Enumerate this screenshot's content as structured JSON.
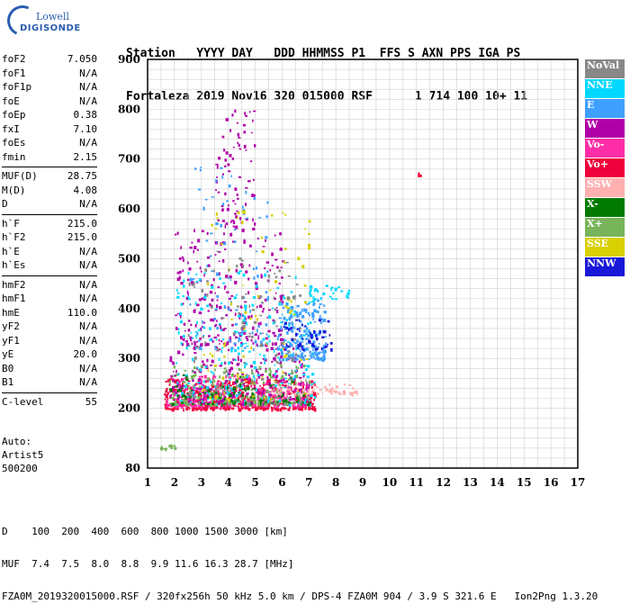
{
  "logo": {
    "line1": "Lowell",
    "line2": "DIGISONDE"
  },
  "header": {
    "line1": "Station   YYYY DAY   DDD HHMMSS P1  FFS S AXN PPS IGA PS",
    "line2": "Fortaleza 2019 Nov16 320 015000 RSF      1 714 100 10+ 11"
  },
  "params_group1": [
    {
      "label": "foF2",
      "value": "7.050"
    },
    {
      "label": "foF1",
      "value": "N/A"
    },
    {
      "label": "foF1p",
      "value": "N/A"
    },
    {
      "label": "foE",
      "value": "N/A"
    },
    {
      "label": "foEp",
      "value": "0.38"
    },
    {
      "label": "fxI",
      "value": "7.10"
    },
    {
      "label": "foEs",
      "value": "N/A"
    },
    {
      "label": "fmin",
      "value": "2.15"
    }
  ],
  "params_group2": [
    {
      "label": "MUF(D)",
      "value": "28.75"
    },
    {
      "label": "M(D)",
      "value": "4.08"
    },
    {
      "label": "D",
      "value": "N/A"
    }
  ],
  "params_group3": [
    {
      "label": "h`F",
      "value": "215.0"
    },
    {
      "label": "h`F2",
      "value": "215.0"
    },
    {
      "label": "h`E",
      "value": "N/A"
    },
    {
      "label": "h`Es",
      "value": "N/A"
    }
  ],
  "params_group4": [
    {
      "label": "hmF2",
      "value": "N/A"
    },
    {
      "label": "hmF1",
      "value": "N/A"
    },
    {
      "label": "hmE",
      "value": "110.0"
    },
    {
      "label": "yF2",
      "value": "N/A"
    },
    {
      "label": "yF1",
      "value": "N/A"
    },
    {
      "label": "yE",
      "value": "20.0"
    },
    {
      "label": "B0",
      "value": "N/A"
    },
    {
      "label": "B1",
      "value": "N/A"
    }
  ],
  "params_group5": [
    {
      "label": "C-level",
      "value": "55"
    }
  ],
  "auto": {
    "line1": "Auto:",
    "line2": "Artist5",
    "line3": "500200"
  },
  "bottom": {
    "d_line": "D    100  200  400  600  800 1000 1500 3000 [km]",
    "muf_line": "MUF  7.4  7.5  8.0  8.8  9.9 11.6 16.3 28.7 [MHz]",
    "footer": "FZA0M_2019320015000.RSF / 320fx256h 50 kHz 5.0 km / DPS-4 FZA0M 904 / 3.9 S 321.6 E   Ion2Png 1.3.20"
  },
  "legend": [
    {
      "label": "NoVal",
      "color": "#888888"
    },
    {
      "label": "NNE",
      "color": "#00d8ff"
    },
    {
      "label": "E",
      "color": "#3fa0ff"
    },
    {
      "label": "W",
      "color": "#b000a8"
    },
    {
      "label": "Vo-",
      "color": "#ff2ea8"
    },
    {
      "label": "Vo+",
      "color": "#f0003c"
    },
    {
      "label": "SSW",
      "color": "#ffb0b0"
    },
    {
      "label": "X-",
      "color": "#007a00"
    },
    {
      "label": "X+",
      "color": "#78b45a"
    },
    {
      "label": "SSE",
      "color": "#d8d000"
    },
    {
      "label": "NNW",
      "color": "#1818d8"
    }
  ],
  "chart_data": {
    "type": "scatter",
    "xlim": [
      1,
      17
    ],
    "ylim": [
      80,
      900
    ],
    "x_ticks": [
      "1",
      "2",
      "3",
      "4",
      "5",
      "6",
      "7",
      "8",
      "9",
      "10",
      "11",
      "12",
      "13",
      "14",
      "15",
      "16",
      "17"
    ],
    "y_ticks": [
      "80",
      "200",
      "300",
      "400",
      "500",
      "600",
      "700",
      "800",
      "900"
    ],
    "grid": true,
    "legend_position": "right",
    "clusters": [
      {
        "series": "Vo+",
        "x": [
          1.6,
          7.2
        ],
        "y": [
          200,
          260
        ],
        "n": 520
      },
      {
        "series": "Vo-",
        "x": [
          1.6,
          7.0
        ],
        "y": [
          205,
          270
        ],
        "n": 260
      },
      {
        "series": "W",
        "x": [
          1.8,
          7.0
        ],
        "y": [
          210,
          330
        ],
        "n": 260
      },
      {
        "series": "W",
        "x": [
          2.0,
          6.0
        ],
        "y": [
          330,
          560
        ],
        "n": 240
      },
      {
        "series": "W",
        "x": [
          3.5,
          5.0
        ],
        "y": [
          560,
          800
        ],
        "n": 80
      },
      {
        "series": "NNE",
        "x": [
          2.0,
          7.2
        ],
        "y": [
          210,
          480
        ],
        "n": 260
      },
      {
        "series": "E",
        "x": [
          5.8,
          7.6
        ],
        "y": [
          300,
          420
        ],
        "n": 200
      },
      {
        "series": "E",
        "x": [
          2.5,
          5.5
        ],
        "y": [
          320,
          700
        ],
        "n": 90
      },
      {
        "series": "X+",
        "x": [
          1.8,
          7.0
        ],
        "y": [
          210,
          290
        ],
        "n": 170
      },
      {
        "series": "X-",
        "x": [
          1.8,
          7.0
        ],
        "y": [
          210,
          270
        ],
        "n": 90
      },
      {
        "series": "SSE",
        "x": [
          3.0,
          7.0
        ],
        "y": [
          220,
          600
        ],
        "n": 90
      },
      {
        "series": "NoVal",
        "x": [
          2.5,
          7.0
        ],
        "y": [
          210,
          520
        ],
        "n": 120
      },
      {
        "series": "SSW",
        "x": [
          5.5,
          8.8
        ],
        "y": [
          230,
          250
        ],
        "n": 60
      },
      {
        "series": "NNW",
        "x": [
          6.0,
          7.8
        ],
        "y": [
          320,
          380
        ],
        "n": 50
      },
      {
        "series": "NNE",
        "x": [
          7.0,
          8.5
        ],
        "y": [
          420,
          450
        ],
        "n": 25
      },
      {
        "series": "X+",
        "x": [
          1.4,
          2.0
        ],
        "y": [
          120,
          128
        ],
        "n": 14
      },
      {
        "series": "Vo+",
        "x": [
          11.0,
          11.2
        ],
        "y": [
          668,
          678
        ],
        "n": 3
      }
    ]
  }
}
